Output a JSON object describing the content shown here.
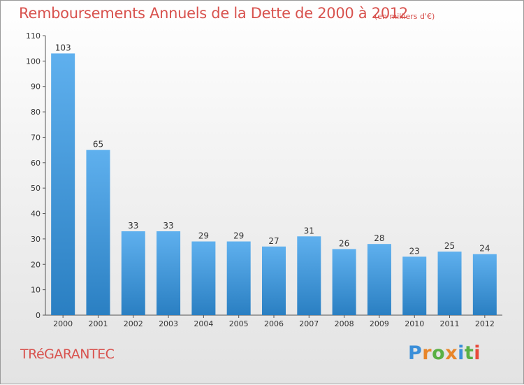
{
  "header": {
    "title": "Remboursements Annuels de la Dette de 2000 à 2012",
    "unit": "(en milliers d'€)"
  },
  "footer": {
    "commune": "TRéGARANTEC",
    "logo": "Proxiti"
  },
  "colors": {
    "title": "#d8524e",
    "bar_top": "#5fb0ee",
    "bar_bottom": "#2a7fc2",
    "axis": "#555555",
    "logo_letters": [
      "#3b8fd9",
      "#e8862a",
      "#59b044",
      "#e8862a",
      "#3b8fd9",
      "#59b044",
      "#e84a3a"
    ]
  },
  "chart_data": {
    "type": "bar",
    "title": "Remboursements Annuels de la Dette de 2000 à 2012",
    "xlabel": "",
    "ylabel": "",
    "categories": [
      "2000",
      "2001",
      "2002",
      "2003",
      "2004",
      "2005",
      "2006",
      "2007",
      "2008",
      "2009",
      "2010",
      "2011",
      "2012"
    ],
    "values": [
      103,
      65,
      33,
      33,
      29,
      29,
      27,
      31,
      26,
      28,
      23,
      25,
      24
    ],
    "ylim": [
      0,
      110
    ],
    "yticks": [
      0,
      10,
      20,
      30,
      40,
      50,
      60,
      70,
      80,
      90,
      100,
      110
    ],
    "grid": false,
    "legend": "none"
  }
}
